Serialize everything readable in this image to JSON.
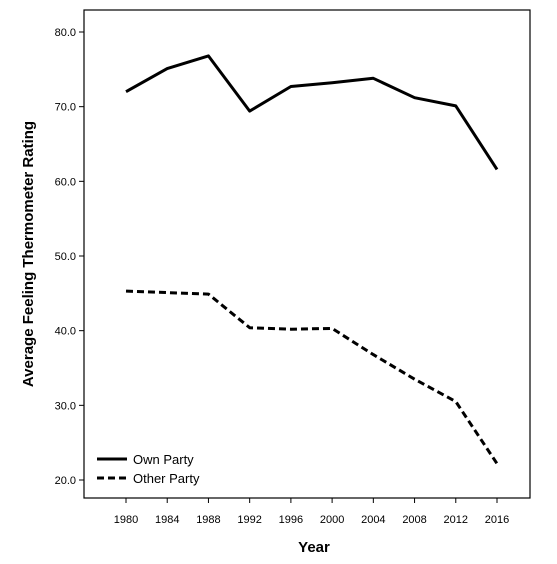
{
  "chart_data": {
    "type": "line",
    "title": "",
    "xlabel": "Year",
    "ylabel": "Average Feeling Thermometer Rating",
    "x": [
      1980,
      1984,
      1988,
      1992,
      1996,
      2000,
      2004,
      2008,
      2012,
      2016
    ],
    "x_tick_labels": [
      "1980",
      "1984",
      "1988",
      "1992",
      "1996",
      "2000",
      "2004",
      "2008",
      "2012",
      "2016"
    ],
    "ylim": [
      20,
      80
    ],
    "y_ticks": [
      20,
      30,
      40,
      50,
      60,
      70,
      80
    ],
    "y_tick_labels": [
      "20.0",
      "30.0",
      "40.0",
      "50.0",
      "60.0",
      "70.0",
      "80.0"
    ],
    "grid": false,
    "legend_position": "bottom-left",
    "series": [
      {
        "name": "Own Party",
        "line_style": "solid",
        "color": "#000000",
        "values": [
          72.0,
          75.1,
          76.8,
          69.4,
          72.7,
          73.2,
          73.8,
          71.2,
          70.1,
          61.6
        ]
      },
      {
        "name": "Other Party",
        "line_style": "dashed",
        "color": "#000000",
        "values": [
          45.3,
          45.1,
          44.9,
          40.4,
          40.2,
          40.3,
          36.8,
          33.5,
          30.5,
          22.2
        ]
      }
    ]
  }
}
